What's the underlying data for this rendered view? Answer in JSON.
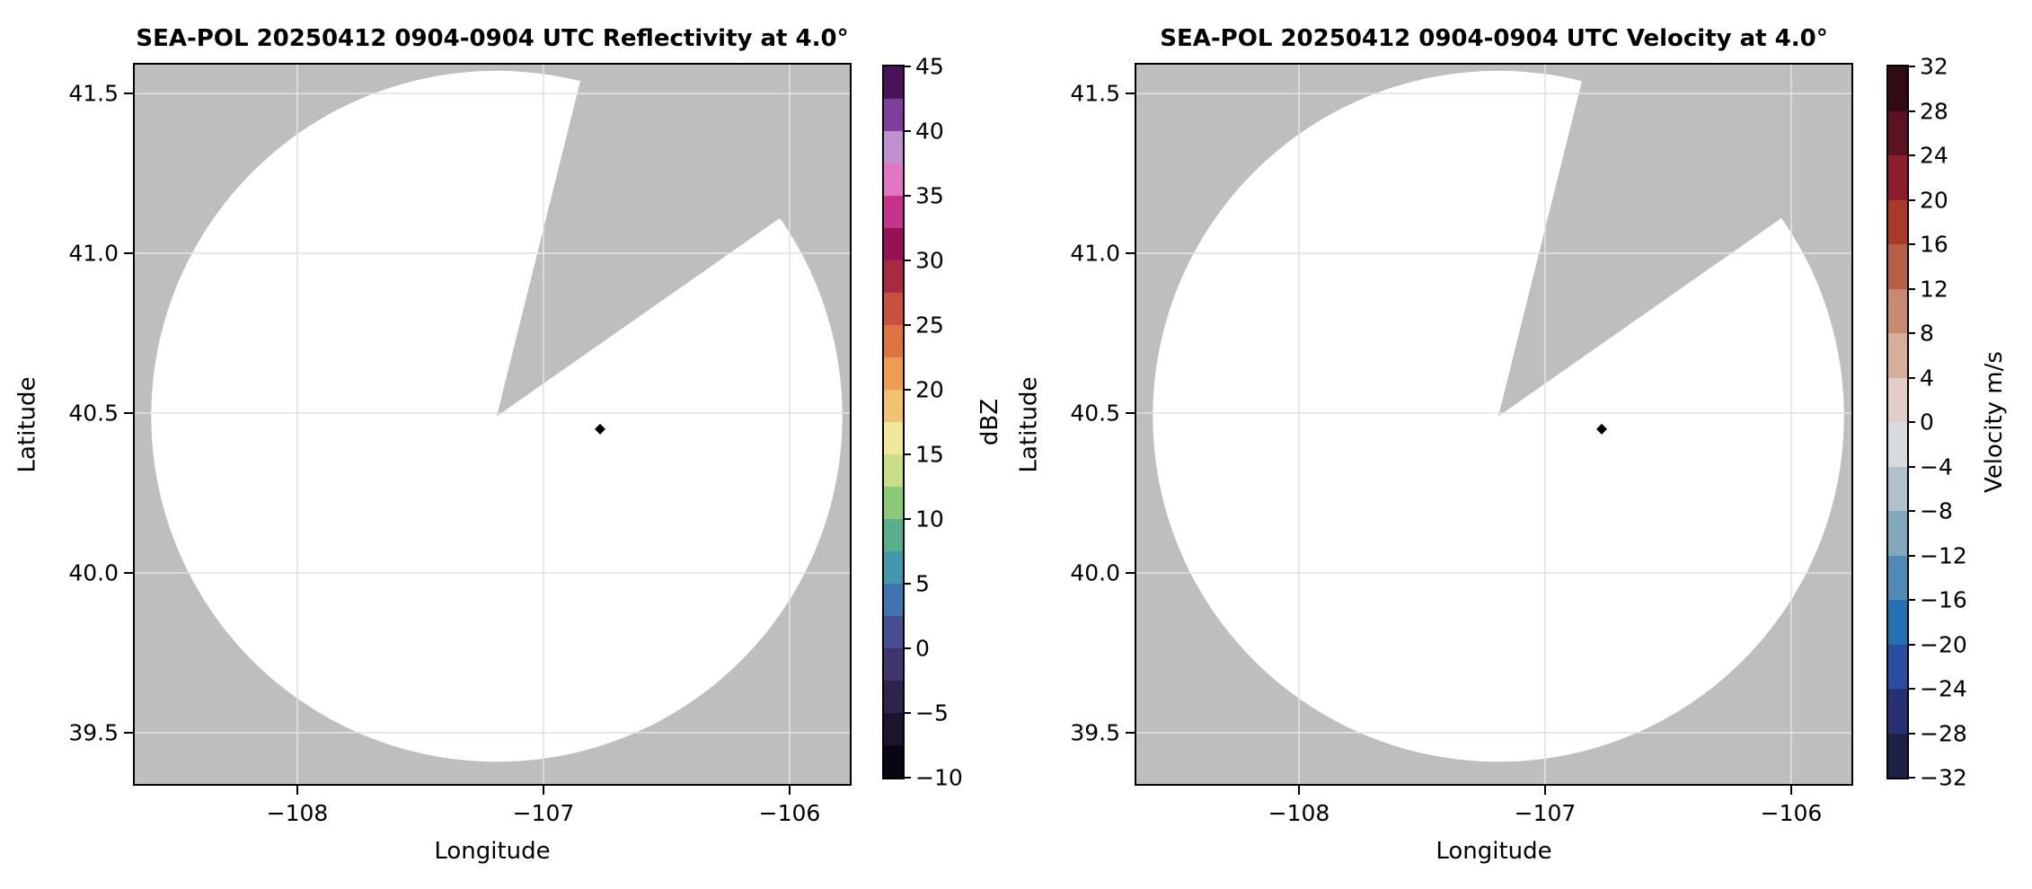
{
  "figure": {
    "background_color": "#ffffff",
    "panel_count": 2
  },
  "chart_data": [
    {
      "type": "heatmap",
      "field": "Reflectivity",
      "title": "SEA-POL 20250412 0904-0904 UTC Reflectivity at 4.0°",
      "xlabel": "Longitude",
      "ylabel": "Latitude",
      "units": "dBZ",
      "grid": true,
      "xlim": [
        -108.668,
        -105.748
      ],
      "ylim": [
        39.334,
        41.596
      ],
      "xticks": [
        -108,
        -107,
        -106
      ],
      "xtick_labels": [
        "−108",
        "−107",
        "−106"
      ],
      "yticks": [
        41.5,
        41.0,
        40.5,
        40.0,
        39.5
      ],
      "ytick_labels": [
        "41.5",
        "41.0",
        "40.5",
        "40.0",
        "39.5"
      ],
      "background_color": "#bebebe",
      "gridline_color": "#e2e2e2",
      "coverage_color": "#ffffff",
      "radar_center": {
        "lon": -107.19,
        "lat": 40.49
      },
      "coverage_radius_deg_lat": 1.081,
      "no_data_sector_azimuth_deg": {
        "start": 14,
        "end": 55
      },
      "echoes": [],
      "marker": {
        "lon": -106.77,
        "lat": 40.45,
        "shape": "diamond",
        "color": "#000000"
      },
      "colorbar": {
        "label": "dBZ",
        "min": -10,
        "max": 45,
        "tick_step": 5,
        "ticks": [
          45,
          40,
          35,
          30,
          25,
          20,
          15,
          10,
          5,
          0,
          -5,
          -10
        ],
        "tick_labels": [
          "45",
          "40",
          "35",
          "30",
          "25",
          "20",
          "15",
          "10",
          "5",
          "0",
          "−5",
          "−10"
        ],
        "segment_step": 2.5,
        "segment_colors_bottom_to_top": [
          "#0a0512",
          "#1d142b",
          "#2f2349",
          "#41336b",
          "#474e92",
          "#4273b1",
          "#4399ab",
          "#57b08b",
          "#8bc877",
          "#c8df87",
          "#efe89a",
          "#f0c271",
          "#ed9b55",
          "#df7443",
          "#c94f3e",
          "#a92a40",
          "#951254",
          "#c5348c",
          "#e077c0",
          "#be90ce",
          "#7d3e9c",
          "#4a1259"
        ]
      }
    },
    {
      "type": "heatmap",
      "field": "Velocity",
      "title": "SEA-POL 20250412 0904-0904 UTC Velocity at 4.0°",
      "xlabel": "Longitude",
      "ylabel": "Latitude",
      "units": "m/s",
      "grid": true,
      "xlim": [
        -108.668,
        -105.748
      ],
      "ylim": [
        39.334,
        41.596
      ],
      "xticks": [
        -108,
        -107,
        -106
      ],
      "xtick_labels": [
        "−108",
        "−107",
        "−106"
      ],
      "yticks": [
        41.5,
        41.0,
        40.5,
        40.0,
        39.5
      ],
      "ytick_labels": [
        "41.5",
        "41.0",
        "40.5",
        "40.0",
        "39.5"
      ],
      "background_color": "#bebebe",
      "gridline_color": "#e2e2e2",
      "coverage_color": "#ffffff",
      "radar_center": {
        "lon": -107.19,
        "lat": 40.49
      },
      "coverage_radius_deg_lat": 1.081,
      "no_data_sector_azimuth_deg": {
        "start": 14,
        "end": 55
      },
      "echoes": [],
      "marker": {
        "lon": -106.77,
        "lat": 40.45,
        "shape": "diamond",
        "color": "#000000"
      },
      "colorbar": {
        "label": "Velocity m/s",
        "min": -32,
        "max": 32,
        "tick_step": 4,
        "ticks": [
          32,
          28,
          24,
          20,
          16,
          12,
          8,
          4,
          0,
          -4,
          -8,
          -12,
          -16,
          -20,
          -24,
          -28,
          -32
        ],
        "tick_labels": [
          "32",
          "28",
          "24",
          "20",
          "16",
          "12",
          "8",
          "4",
          "0",
          "−4",
          "−8",
          "−12",
          "−16",
          "−20",
          "−24",
          "−28",
          "−32"
        ],
        "segment_step": 4,
        "segment_colors_bottom_to_top": [
          "#1e2045",
          "#283170",
          "#2c4ea2",
          "#2371b2",
          "#518bb4",
          "#82a8bc",
          "#afc2cb",
          "#d7dbde",
          "#e2cec6",
          "#d6ae9b",
          "#c58a70",
          "#b66049",
          "#a93a27",
          "#8d1d2a",
          "#5c1321",
          "#320a12"
        ]
      }
    }
  ]
}
